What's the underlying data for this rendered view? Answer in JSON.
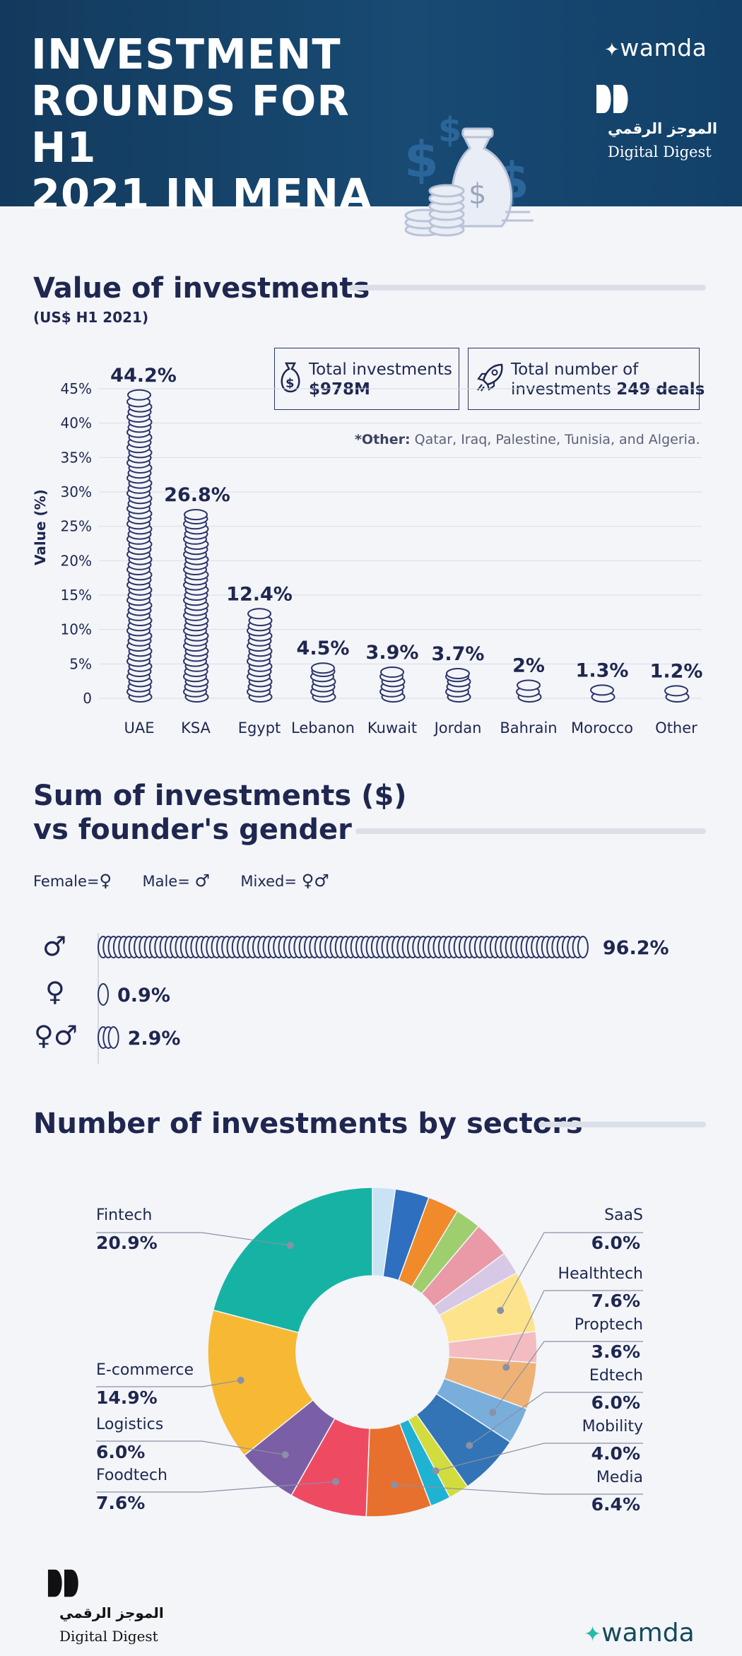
{
  "header": {
    "title_lines": [
      "INVESTMENT",
      "ROUNDS FOR H1",
      "2021 IN MENA"
    ],
    "brand_wamda": "wamda",
    "brand_digest_ar": "الموجز الرقمي",
    "brand_digest_en": "Digital Digest"
  },
  "value_section": {
    "title": "Value of investments",
    "subtitle": "(US$ H1 2021)",
    "total_investments_label": "Total investments",
    "total_investments_value": "$978M",
    "total_deals_label_1": "Total number of",
    "total_deals_label_2": "investments",
    "total_deals_value": "249 deals",
    "note_bold": "*Other:",
    "note_text": "Qatar, Iraq, Palestine, Tunisia, and Algeria."
  },
  "gender_section": {
    "title_line1": "Sum of investments ($)",
    "title_line2": "vs founder's gender",
    "legend_female": "Female=",
    "legend_male": "Male=",
    "legend_mixed": "Mixed=",
    "symbol_female": "♀",
    "symbol_male": "♂",
    "symbol_mixed": "♀♂"
  },
  "sector_section": {
    "title": "Number of investments by sectors"
  },
  "footer": {
    "brand_digest_ar": "الموجز الرقمي",
    "brand_digest_en": "Digital Digest",
    "brand_wamda": "wamda"
  },
  "colors": {
    "navy": "#1f2750",
    "header_bg": "#164468",
    "coin_stroke": "#2a3468",
    "gridline": "#d8dce6"
  },
  "chart_data": [
    {
      "type": "bar",
      "title": "Value of investments",
      "ylabel": "Value (%)",
      "xlabel": "",
      "ylim": [
        0,
        45
      ],
      "yticks": [
        0,
        5,
        10,
        15,
        20,
        25,
        30,
        35,
        40,
        45
      ],
      "ytick_labels": [
        "0",
        "5%",
        "10%",
        "15%",
        "20%",
        "25%",
        "30%",
        "35%",
        "40%",
        "45%"
      ],
      "categories": [
        "UAE",
        "KSA",
        "Egypt",
        "Lebanon",
        "Kuwait",
        "Jordan",
        "Bahrain",
        "Morocco",
        "Other"
      ],
      "values": [
        44.2,
        26.8,
        12.4,
        4.5,
        3.9,
        3.7,
        2,
        1.3,
        1.2
      ],
      "value_labels": [
        "44.2%",
        "26.8%",
        "12.4%",
        "4.5%",
        "3.9%",
        "3.7%",
        "2%",
        "1.3%",
        "1.2%"
      ]
    },
    {
      "type": "bar",
      "orientation": "horizontal",
      "title": "Sum of investments ($) vs founder's gender",
      "categories": [
        "Male",
        "Female",
        "Mixed"
      ],
      "values": [
        96.2,
        0.9,
        2.9
      ],
      "value_labels": [
        "96.2%",
        "0.9%",
        "2.9%"
      ]
    },
    {
      "type": "pie",
      "title": "Number of investments by sectors",
      "categories": [
        "Fintech",
        "E-commerce",
        "Logistics",
        "Foodtech",
        "Media",
        "Mobility",
        "Edtech",
        "Proptech",
        "Healthtech",
        "SaaS"
      ],
      "values": [
        20.9,
        14.9,
        6.0,
        7.6,
        6.4,
        4.0,
        6.0,
        3.6,
        7.6,
        6.0
      ],
      "value_labels": [
        "20.9%",
        "14.9%",
        "6.0%",
        "7.6%",
        "6.4%",
        "4.0%",
        "6.0%",
        "3.6%",
        "7.6%",
        "6.0%"
      ],
      "colors": [
        "#16b3a4",
        "#f7b934",
        "#7b5fa6",
        "#ee4b63",
        "#e8702f",
        "#d2dc3e",
        "#1fb2d2",
        "#3274b5",
        "#79aedb",
        "#efb276",
        "#f3bcc1",
        "#fde48c"
      ],
      "other_slices_colors": [
        "#c9e3f5",
        "#2e6fbf",
        "#f08a2b",
        "#9fce6e",
        "#e99aa6",
        "#d7c8e6"
      ]
    }
  ]
}
